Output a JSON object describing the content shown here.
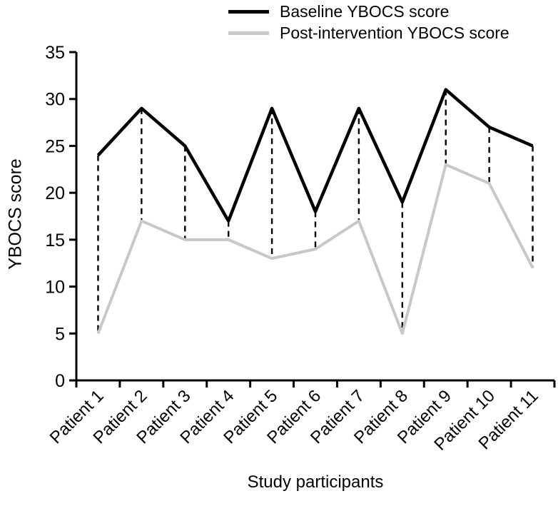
{
  "legend": {
    "items": [
      {
        "label": "Baseline YBOCS score",
        "color": "#000000"
      },
      {
        "label": "Post-intervention YBOCS score",
        "color": "#c8c8c8"
      }
    ]
  },
  "axes": {
    "x_title": "Study participants",
    "y_title": "YBOCS score"
  },
  "chart_data": {
    "type": "line",
    "title": "",
    "categories": [
      "Patient 1",
      "Patient 2",
      "Patient 3",
      "Patient 4",
      "Patient 5",
      "Patient 6",
      "Patient 7",
      "Patient 8",
      "Patient 9",
      "Patient 10",
      "Patient 11"
    ],
    "series": [
      {
        "name": "Baseline YBOCS score",
        "color": "#000000",
        "values": [
          24,
          29,
          25,
          17,
          29,
          18,
          29,
          19,
          31,
          27,
          25
        ]
      },
      {
        "name": "Post-intervention YBOCS score",
        "color": "#c8c8c8",
        "values": [
          5,
          17,
          15,
          15,
          13,
          14,
          17,
          5,
          23,
          21,
          12
        ]
      }
    ],
    "connectors": "dashed vertical line between baseline and post-intervention value at each patient",
    "xlabel": "Study participants",
    "ylabel": "YBOCS score",
    "ylim": [
      0,
      35
    ],
    "yticks": [
      0,
      5,
      10,
      15,
      20,
      25,
      30,
      35
    ],
    "grid": false,
    "legend_position": "top-center"
  }
}
